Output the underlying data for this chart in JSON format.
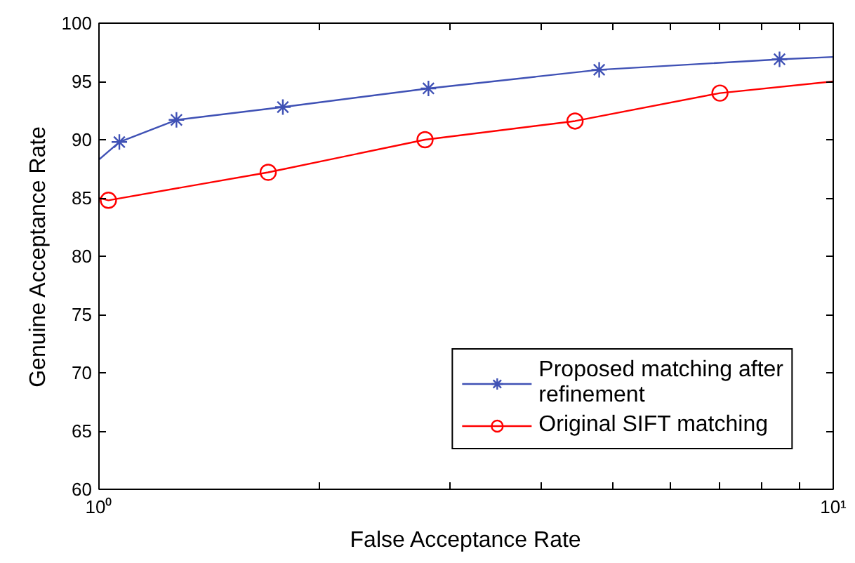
{
  "chart_data": {
    "type": "line",
    "xlabel": "False Acceptance Rate",
    "ylabel": "Genuine Acceptance Rate",
    "log": "x",
    "xlim": [
      1,
      10
    ],
    "ylim": [
      60,
      100
    ],
    "xticks": [
      {
        "value": 1,
        "label": "10⁰"
      },
      {
        "value": 2,
        "label": null
      },
      {
        "value": 3,
        "label": null
      },
      {
        "value": 4,
        "label": null
      },
      {
        "value": 5,
        "label": null
      },
      {
        "value": 6,
        "label": null
      },
      {
        "value": 7,
        "label": null
      },
      {
        "value": 8,
        "label": null
      },
      {
        "value": 9,
        "label": null
      },
      {
        "value": 10,
        "label": "10¹"
      }
    ],
    "yticks": [
      60,
      65,
      70,
      75,
      80,
      85,
      90,
      95,
      100
    ],
    "grid": false,
    "legend": "bottom right",
    "series": [
      {
        "marker": "none",
        "color": "#3f51b5",
        "x": [
          1,
          1.066,
          1.275,
          1.78,
          2.81,
          4.8,
          8.45,
          10
        ],
        "values": [
          88.3,
          89.8,
          91.7,
          92.8,
          94.4,
          96.0,
          96.9,
          97.1
        ]
      },
      {
        "type": "scatter",
        "name": "Proposed matching after refinement",
        "marker": "cross",
        "color": "#3f51b5",
        "x": [
          1.066,
          1.275,
          1.78,
          2.81,
          4.8,
          8.45
        ],
        "values": [
          89.8,
          91.7,
          92.8,
          94.4,
          96.0,
          96.9
        ]
      },
      {
        "marker": "none",
        "color": "#ff0000",
        "x": [
          1,
          1.03,
          1.7,
          2.78,
          4.45,
          7.01,
          10
        ],
        "values": [
          85.0,
          84.8,
          87.2,
          90.0,
          91.6,
          94.0,
          95.0
        ]
      },
      {
        "type": "scatter",
        "name": "Original SIFT matching",
        "marker": "circle",
        "color": "#ff0000",
        "x": [
          1.03,
          1.7,
          2.78,
          4.45,
          7.01
        ],
        "values": [
          84.8,
          87.2,
          90.0,
          91.6,
          94.0
        ]
      }
    ]
  }
}
